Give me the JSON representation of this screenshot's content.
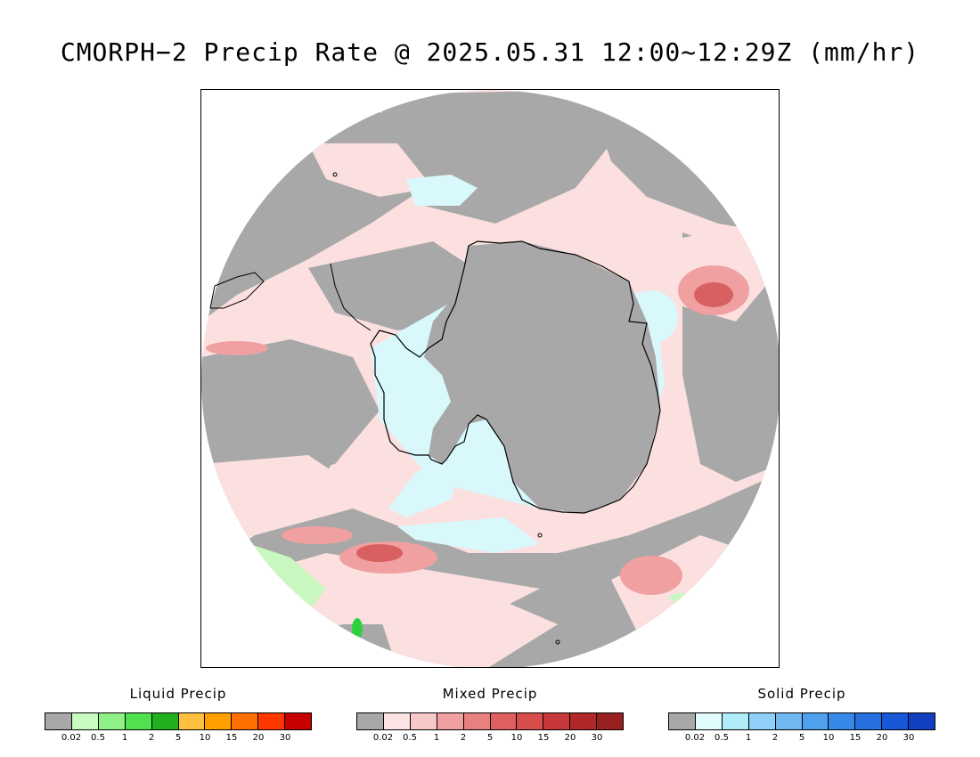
{
  "title": "CMORPH−2 Precip Rate @ 2025.05.31 12:00~12:29Z (mm/hr)",
  "colors": {
    "no_precip": "#a8a8a8",
    "liquid_light": "#c8f8c0",
    "liquid_green": "#30d040",
    "liquid_dark": "#10b020",
    "mixed_light": "#fce0e0",
    "mixed_mid": "#f0a0a0",
    "mixed_dark": "#d86060",
    "solid_light": "#d8f8fc",
    "coastline": "#000000"
  },
  "legends": [
    {
      "name": "Liquid Precip",
      "ticks": [
        "0.02",
        "0.5",
        "1",
        "2",
        "5",
        "10",
        "15",
        "20",
        "30"
      ],
      "colors": [
        "#a8a8a8",
        "#c8fcc0",
        "#90f088",
        "#50e050",
        "#20b020",
        "#ffc040",
        "#ffa000",
        "#ff7000",
        "#ff3800",
        "#c80000"
      ]
    },
    {
      "name": "Mixed Precip",
      "ticks": [
        "0.02",
        "0.5",
        "1",
        "2",
        "5",
        "10",
        "15",
        "20",
        "30"
      ],
      "colors": [
        "#a8a8a8",
        "#fce4e4",
        "#f8c8c8",
        "#f0a0a0",
        "#e88080",
        "#e06060",
        "#d84c4c",
        "#c83838",
        "#b02828",
        "#982020"
      ]
    },
    {
      "name": "Solid Precip",
      "ticks": [
        "0.02",
        "0.5",
        "1",
        "2",
        "5",
        "10",
        "15",
        "20",
        "30"
      ],
      "colors": [
        "#a8a8a8",
        "#e0fcfc",
        "#b0ecf8",
        "#90d0f8",
        "#70b8f0",
        "#50a0f0",
        "#3888e8",
        "#2870e0",
        "#1858d8",
        "#1040c0"
      ]
    }
  ]
}
